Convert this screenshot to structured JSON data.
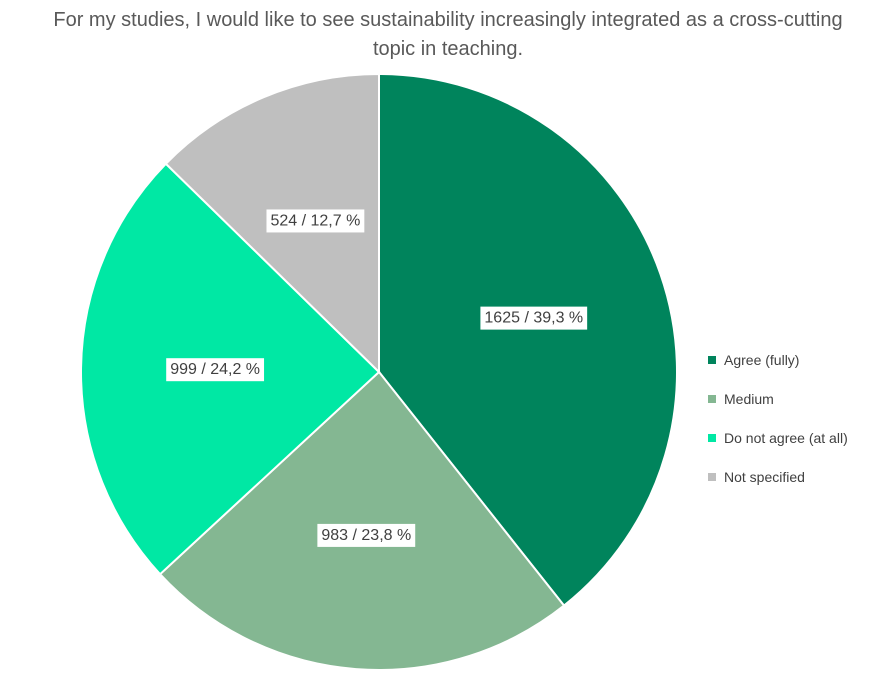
{
  "chart_data": {
    "type": "pie",
    "title": "For my studies, I would like to see sustainability increasingly integrated as a cross-cutting topic in teaching.",
    "slices": [
      {
        "name": "Agree (fully)",
        "value": 1625,
        "label": "1625 / 39,3 %",
        "color": "#00845C"
      },
      {
        "name": "Medium",
        "value": 983,
        "label": "983 / 23,8 %",
        "color": "#84B792"
      },
      {
        "name": "Do not agree (at all)",
        "value": 999,
        "label": "999 / 24,2 %",
        "color": "#00E8A4"
      },
      {
        "name": "Not specified",
        "value": 524,
        "label": "524 / 12,7 %",
        "color": "#BFBFBF"
      }
    ],
    "legend_position": "right"
  }
}
